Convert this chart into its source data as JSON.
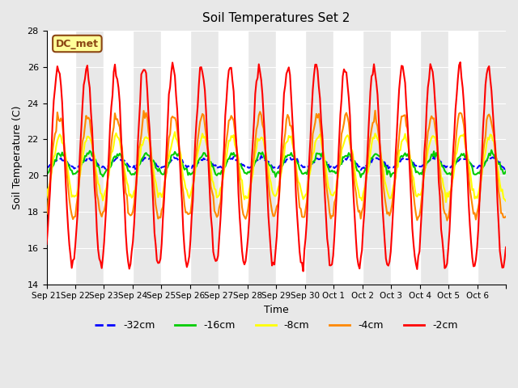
{
  "title": "Soil Temperatures Set 2",
  "xlabel": "Time",
  "ylabel": "Soil Temperature (C)",
  "ylim": [
    14,
    28
  ],
  "annotation": "DC_met",
  "x_tick_labels": [
    "Sep 21",
    "Sep 22",
    "Sep 23",
    "Sep 24",
    "Sep 25",
    "Sep 26",
    "Sep 27",
    "Sep 28",
    "Sep 29",
    "Sep 30",
    "Oct 1",
    "Oct 2",
    "Oct 3",
    "Oct 4",
    "Oct 5",
    "Oct 6",
    ""
  ],
  "series": [
    {
      "label": "-32cm",
      "color": "#0000ff",
      "linewidth": 1.5,
      "linestyle": "--"
    },
    {
      "label": "-16cm",
      "color": "#00cc00",
      "linewidth": 1.5,
      "linestyle": "-"
    },
    {
      "label": "-8cm",
      "color": "#ffff00",
      "linewidth": 1.5,
      "linestyle": "-"
    },
    {
      "label": "-4cm",
      "color": "#ff8800",
      "linewidth": 1.5,
      "linestyle": "-"
    },
    {
      "label": "-2cm",
      "color": "#ff0000",
      "linewidth": 1.5,
      "linestyle": "-"
    }
  ],
  "amplitudes": [
    0.25,
    0.55,
    1.7,
    2.8,
    5.5
  ],
  "means": [
    20.7,
    20.65,
    20.5,
    20.5,
    20.5
  ],
  "phase_lags": [
    0.0,
    0.05,
    0.25,
    0.45,
    0.65
  ],
  "noise_scales": [
    0.05,
    0.08,
    0.12,
    0.15,
    0.18
  ],
  "bg_color": "#e8e8e8",
  "plot_bg_color": "#e8e8e8",
  "band_color": "#ffffff",
  "n_days": 16,
  "points_per_day": 24
}
